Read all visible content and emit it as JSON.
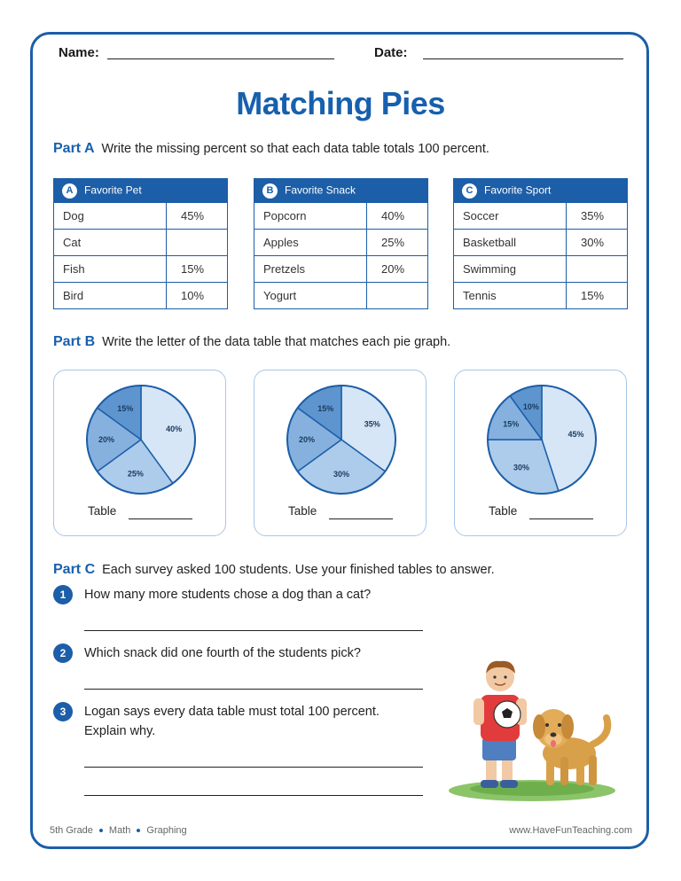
{
  "header": {
    "name_label": "Name:",
    "date_label": "Date:"
  },
  "title": "Matching Pies",
  "part_a": {
    "label": "Part A",
    "instruction": "Write the missing percent so that each data table totals 100 percent.",
    "tables": [
      {
        "letter": "A",
        "title": "Favorite Pet",
        "rows": [
          {
            "item": "Dog",
            "value": "45%"
          },
          {
            "item": "Cat",
            "value": ""
          },
          {
            "item": "Fish",
            "value": "15%"
          },
          {
            "item": "Bird",
            "value": "10%"
          }
        ]
      },
      {
        "letter": "B",
        "title": "Favorite Snack",
        "rows": [
          {
            "item": "Popcorn",
            "value": "40%"
          },
          {
            "item": "Apples",
            "value": "25%"
          },
          {
            "item": "Pretzels",
            "value": "20%"
          },
          {
            "item": "Yogurt",
            "value": ""
          }
        ]
      },
      {
        "letter": "C",
        "title": "Favorite Sport",
        "rows": [
          {
            "item": "Soccer",
            "value": "35%"
          },
          {
            "item": "Basketball",
            "value": "30%"
          },
          {
            "item": "Swimming",
            "value": ""
          },
          {
            "item": "Tennis",
            "value": "15%"
          }
        ]
      }
    ]
  },
  "part_b": {
    "label": "Part B",
    "instruction": "Write the letter of the data table that matches each pie graph.",
    "table_label": "Table"
  },
  "chart_data": [
    {
      "type": "pie",
      "slices": [
        {
          "label": "40%",
          "value": 40
        },
        {
          "label": "25%",
          "value": 25
        },
        {
          "label": "20%",
          "value": 20
        },
        {
          "label": "15%",
          "value": 15
        }
      ],
      "colors": [
        "#d6e6f6",
        "#adcbeb",
        "#86b1de",
        "#5e95cf"
      ]
    },
    {
      "type": "pie",
      "slices": [
        {
          "label": "35%",
          "value": 35
        },
        {
          "label": "30%",
          "value": 30
        },
        {
          "label": "20%",
          "value": 20
        },
        {
          "label": "15%",
          "value": 15
        }
      ],
      "colors": [
        "#d6e6f6",
        "#adcbeb",
        "#86b1de",
        "#5e95cf"
      ]
    },
    {
      "type": "pie",
      "slices": [
        {
          "label": "45%",
          "value": 45
        },
        {
          "label": "30%",
          "value": 30
        },
        {
          "label": "15%",
          "value": 15
        },
        {
          "label": "10%",
          "value": 10
        }
      ],
      "colors": [
        "#d6e6f6",
        "#adcbeb",
        "#86b1de",
        "#5e95cf"
      ]
    }
  ],
  "part_c": {
    "label": "Part C",
    "instruction": "Each survey asked 100 students. Use your finished tables to answer.",
    "questions": [
      {
        "number": "1",
        "text": "How many more students chose a dog than a cat?"
      },
      {
        "number": "2",
        "text": "Which snack did one fourth of the students pick?"
      },
      {
        "number": "3",
        "text_line1": "Logan says every data table must total 100 percent.",
        "text_line2": "Explain why."
      }
    ]
  },
  "footer": {
    "grade": "5th Grade",
    "subject": "Math",
    "topic": "Graphing",
    "site": "www.HaveFunTeaching.com"
  }
}
